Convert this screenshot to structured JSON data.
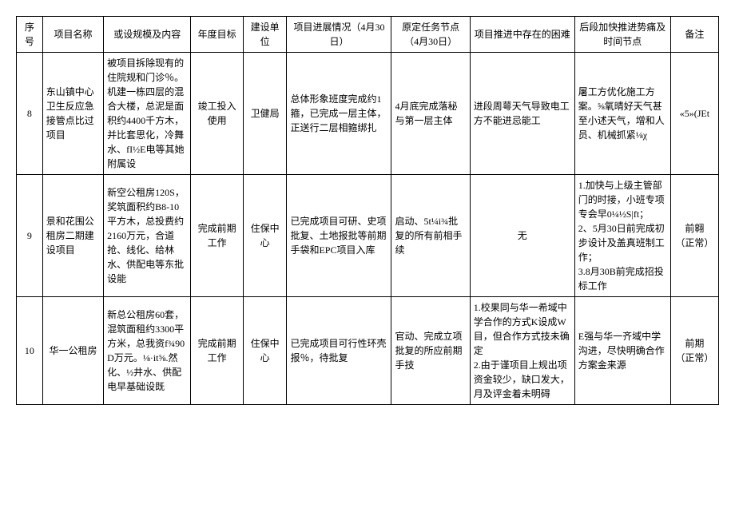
{
  "headers": {
    "seq": "序号",
    "name": "项目名称",
    "scale": "或设规模及内容",
    "goal": "年度目标",
    "unit": "建设单位",
    "progress": "项目进展情况（4月30日）",
    "task": "原定任务节点（4月30日）",
    "difficulty": "项目推进中存在的困难",
    "next": "后段加快推进势痛及时间节点",
    "remark": "备注"
  },
  "rows": [
    {
      "seq": "8",
      "name": "东山镇中心卫生反应急接管点比过项目",
      "scale": "被项目拆除现有的住院规和门诊％。机建一栋四层的混合大楼，总泥是面积约4400千方木，并比套思化，冷舞水、fI½E电等其她附属设",
      "goal": "竣工投入使用",
      "unit": "卫健局",
      "progress": "总体形象班度完成约1箍，已完成一层主体，正送行二层相箍绑扎",
      "task": "4月底完成落秘与第一层主体",
      "difficulty": "进段周萼天气导致电工方不能进忌能工",
      "next": "屠工方优化施工方案。⅝氧晴好天气甚至小述天气，增和人员、机械抓紧⅛χ",
      "remark": "«5»(JEt"
    },
    {
      "seq": "9",
      "name": "景和花围公租房二期建设项目",
      "scale": "新空公租房120S，奖筑面积约B8-10平方木，总投费约2160万元，合道抢、线化、给林水、供配电等东批设能",
      "goal": "完成前期工作",
      "unit": "住保中心",
      "progress": "已完成项目可研、史项批复、土地报批等前期手袋和EPC项目入库",
      "task": "启动、5t¼i¾批复的所有前相手续",
      "difficulty": "无",
      "next": "1.加快与上级主管部门的时接，小班专项专会早0¼½S|ft；\n2、5月30日前完成初步设计及盖真班制工作；\n3.8月30B前完成招投标工作",
      "remark": "前翱\n（正常）"
    },
    {
      "seq": "10",
      "name": "华一公租房",
      "scale": "新总公租房60套，混筑面租约3300平方米，总我资f¾90D万元。⅛·it⅝.然化、½井水、供配电早基础设既",
      "goal": "完成前期工作",
      "unit": "住保中心",
      "progress": "已完成项目可行性环壳报％，待批复",
      "task": "官动、完成立项批复的所应前期手技",
      "difficulty": "1.校果同与华一希域中学合作的方式K设成W目，但合作方式技未确定\n2.由于谨项目上规出项资金较少，缺口发大，月及评金着未明碍",
      "next": "E强与华一齐域中学沟进，尽快明确合作方案金来源",
      "remark": "前期\n（正常）"
    }
  ]
}
